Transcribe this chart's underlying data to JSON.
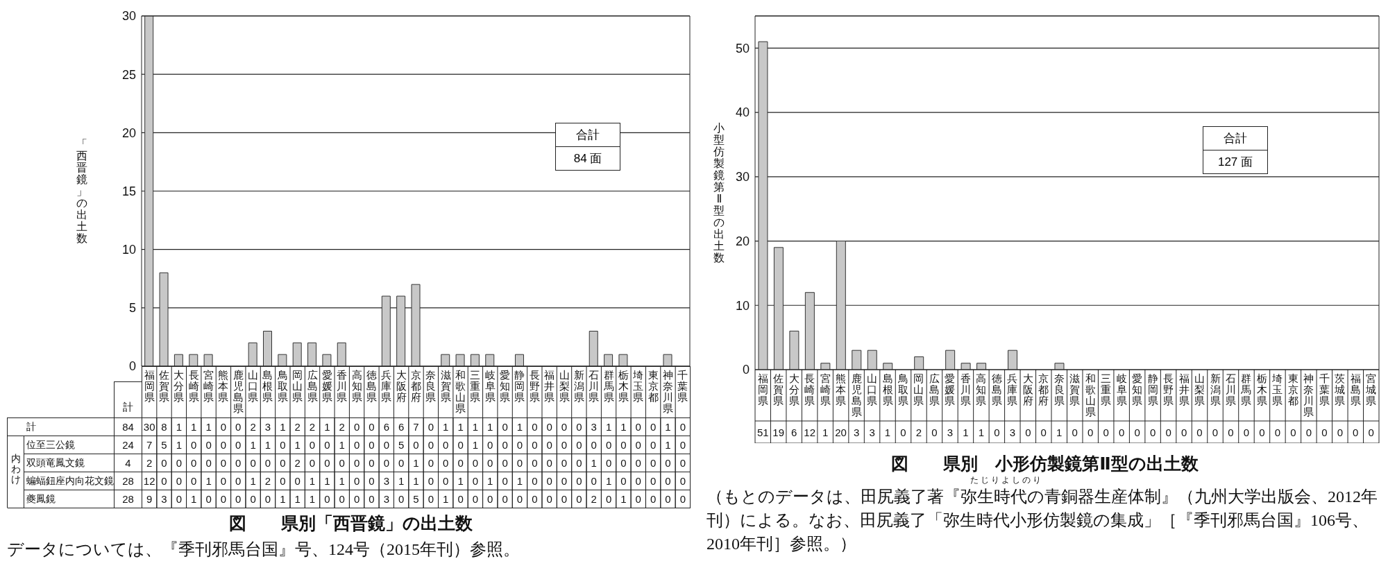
{
  "chart_data": [
    {
      "type": "bar",
      "title": "図　　県別「西晋鏡」の出土数",
      "ylabel": "「西晋鏡」の出土数",
      "categories": [
        null,
        null,
        null,
        null,
        null,
        null,
        null,
        null,
        null,
        null,
        null,
        null,
        null,
        null,
        null,
        null,
        null,
        null,
        null,
        null,
        null,
        null,
        null,
        null,
        null,
        null,
        null,
        null,
        null,
        null,
        null,
        null,
        null,
        null,
        null,
        null,
        null
      ],
      "values": [
        30,
        8,
        1,
        1,
        1,
        0,
        0,
        2,
        3,
        1,
        2,
        2,
        1,
        2,
        0,
        0,
        6,
        6,
        7,
        0,
        1,
        1,
        1,
        1,
        0,
        1,
        0,
        0,
        0,
        0,
        3,
        1,
        1,
        0,
        0,
        1,
        0
      ],
      "color": "#c8c8c8",
      "ylim": [
        0,
        30
      ],
      "yticks": [
        0,
        5,
        10,
        15,
        20,
        25,
        30
      ],
      "grid": "y",
      "tick_labels": "y",
      "annotations": [
        "合計",
        "84 面",
        "データについては、『季刊邪馬台国』号、124号（2015年刊）参照。"
      ]
    },
    {
      "type": "other",
      "categories": [
        "計",
        "福岡県",
        "佐賀県",
        "大分県",
        "長崎県",
        "宮崎県",
        "熊本県",
        "鹿児島県",
        "山口県",
        "島根県",
        "鳥取県",
        "岡山県",
        "広島県",
        "愛媛県",
        "香川県",
        "高知県",
        "徳島県",
        "兵庫県",
        "大阪府",
        "京都府",
        "奈良県",
        "滋賀県",
        "和歌山県",
        "三重県",
        "岐阜県",
        "愛知県",
        "静岡県",
        "長野県",
        "福井県",
        "山梨県",
        "新潟県",
        "石川県",
        "群馬県",
        "栃木県",
        "埼玉県",
        "東京都",
        "神奈川県",
        "千葉県"
      ],
      "data_labels": true,
      "series": [
        {
          "name": "計",
          "values": [
            84,
            30,
            8,
            1,
            1,
            1,
            0,
            0,
            2,
            3,
            1,
            2,
            2,
            1,
            2,
            0,
            0,
            6,
            6,
            7,
            0,
            1,
            1,
            1,
            1,
            0,
            1,
            0,
            0,
            0,
            0,
            3,
            1,
            1,
            0,
            0,
            1,
            0
          ]
        },
        {
          "name": "位至三公鏡",
          "values": [
            24,
            7,
            5,
            1,
            0,
            0,
            0,
            0,
            1,
            1,
            0,
            1,
            0,
            0,
            1,
            0,
            0,
            0,
            5,
            0,
            0,
            0,
            0,
            1,
            0,
            0,
            0,
            0,
            0,
            0,
            0,
            0,
            0,
            0,
            0,
            0,
            1,
            0
          ]
        },
        {
          "name": "双頭竜鳳文鏡",
          "values": [
            4,
            2,
            0,
            0,
            0,
            0,
            0,
            0,
            0,
            0,
            0,
            2,
            0,
            0,
            0,
            0,
            0,
            0,
            0,
            1,
            0,
            0,
            0,
            0,
            0,
            0,
            0,
            0,
            0,
            0,
            0,
            1,
            0,
            0,
            0,
            0,
            0,
            0
          ]
        },
        {
          "name": "蝙蝠鈕座内向花文鏡",
          "values": [
            28,
            12,
            0,
            0,
            0,
            1,
            0,
            0,
            1,
            2,
            0,
            0,
            1,
            1,
            1,
            0,
            0,
            3,
            1,
            1,
            0,
            0,
            1,
            0,
            1,
            0,
            1,
            0,
            0,
            0,
            0,
            0,
            1,
            0,
            0,
            0,
            0,
            0
          ]
        },
        {
          "name": "夔鳳鏡",
          "values": [
            28,
            9,
            3,
            0,
            1,
            0,
            0,
            0,
            0,
            0,
            1,
            1,
            1,
            0,
            0,
            0,
            0,
            3,
            0,
            5,
            0,
            1,
            0,
            0,
            0,
            0,
            0,
            0,
            0,
            0,
            0,
            2,
            0,
            1,
            0,
            0,
            0,
            0
          ]
        }
      ],
      "annotations": [
        "内わけ"
      ]
    },
    {
      "type": "bar",
      "title": "図　　県別　小形仿製鏡第Ⅱ型の出土数",
      "ylabel": "小型仿製鏡第Ⅱ型の出土数",
      "categories": [
        "福岡県",
        "佐賀県",
        "大分県",
        "長崎県",
        "宮崎県",
        "熊本県",
        "鹿児島県",
        "山口県",
        "島根県",
        "鳥取県",
        "岡山県",
        "広島県",
        "愛媛県",
        "香川県",
        "高知県",
        "徳島県",
        "兵庫県",
        "大阪府",
        "京都府",
        "奈良県",
        "滋賀県",
        "和歌山県",
        "三重県",
        "岐阜県",
        "愛知県",
        "静岡県",
        "長野県",
        "福井県",
        "山梨県",
        "新潟県",
        "石川県",
        "群馬県",
        "栃木県",
        "埼玉県",
        "東京都",
        "神奈川県",
        "千葉県",
        "茨城県",
        "福島県",
        "宮城県"
      ],
      "values": [
        51,
        19,
        6,
        12,
        1,
        20,
        3,
        3,
        1,
        0,
        2,
        0,
        3,
        1,
        1,
        0,
        3,
        0,
        0,
        1,
        0,
        0,
        0,
        0,
        0,
        0,
        0,
        0,
        0,
        0,
        0,
        0,
        0,
        0,
        0,
        0,
        0,
        0,
        0,
        0
      ],
      "color": "#c8c8c8",
      "ylim": [
        0,
        55
      ],
      "yticks": [
        0,
        10,
        20,
        30,
        40,
        50
      ],
      "grid": "y",
      "data_labels": true,
      "annotations": [
        "合計",
        "127 面",
        "たじりよしのり",
        "（もとのデータは、田尻義了著『弥生時代の青銅器生産体制』（九州大学出版会、2012年刊）による。なお、田尻義了「弥生時代小形仿製鏡の集成」［『季刊邪馬台国』106号、2010年刊］参照。）"
      ]
    }
  ]
}
